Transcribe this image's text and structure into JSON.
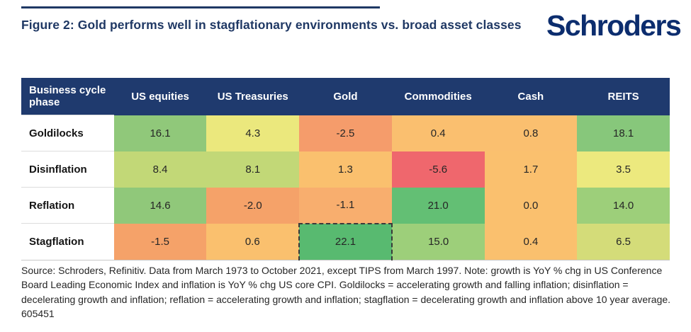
{
  "figure": {
    "title": "Figure 2: Gold performs well in stagflationary environments vs. broad asset classes",
    "logo": "Schroders"
  },
  "chart_data": {
    "type": "heatmap",
    "title": "Figure 2: Gold performs well in stagflationary environments vs. broad asset classes",
    "columns": [
      "Business cycle phase",
      "US equities",
      "US Treasuries",
      "Gold",
      "Commodities",
      "Cash",
      "REITS"
    ],
    "rows": [
      {
        "phase": "Goldilocks",
        "values": [
          "16.1",
          "4.3",
          "-2.5",
          "0.4",
          "0.8",
          "18.1"
        ],
        "colors": [
          "#90c87a",
          "#ebe87d",
          "#f59c6b",
          "#fabf6f",
          "#fabf6f",
          "#87c77b"
        ]
      },
      {
        "phase": "Disinflation",
        "values": [
          "8.4",
          "8.1",
          "1.3",
          "-5.6",
          "1.7",
          "3.5"
        ],
        "colors": [
          "#c2d877",
          "#c2d877",
          "#fac06e",
          "#ef676d",
          "#fac06e",
          "#ece97e"
        ]
      },
      {
        "phase": "Reflation",
        "values": [
          "14.6",
          "-2.0",
          "-1.1",
          "21.0",
          "0.0",
          "14.0"
        ],
        "colors": [
          "#90c87a",
          "#f5a269",
          "#f8ae6e",
          "#63bf74",
          "#fac06e",
          "#9dcf7a"
        ]
      },
      {
        "phase": "Stagflation",
        "values": [
          "-1.5",
          "0.6",
          "22.1",
          "15.0",
          "0.4",
          "6.5"
        ],
        "colors": [
          "#f5a269",
          "#fac06e",
          "#58ba70",
          "#9dcf7a",
          "#fac06e",
          "#d4dc79"
        ]
      }
    ],
    "highlight": {
      "row_index": 3,
      "col_index": 2,
      "style": "dashed-outline"
    }
  },
  "footer": {
    "source_text": "Source: Schroders, Refinitiv. Data from March 1973 to October 2021, except TIPS from March 1997. Note: growth is YoY % chg in US Conference Board Leading Economic Index and inflation is YoY % chg US core CPI. Goldilocks = accelerating growth and falling inflation; disinflation = decelerating growth and inflation; reflation = accelerating growth and inflation; stagflation = decelerating growth and inflation above 10 year average. 605451"
  },
  "colors": {
    "header_bg": "#1f3a6e",
    "title_text": "#1f3864",
    "logo_text": "#0c2d6e",
    "highlight_border": "#3a3a3a"
  }
}
